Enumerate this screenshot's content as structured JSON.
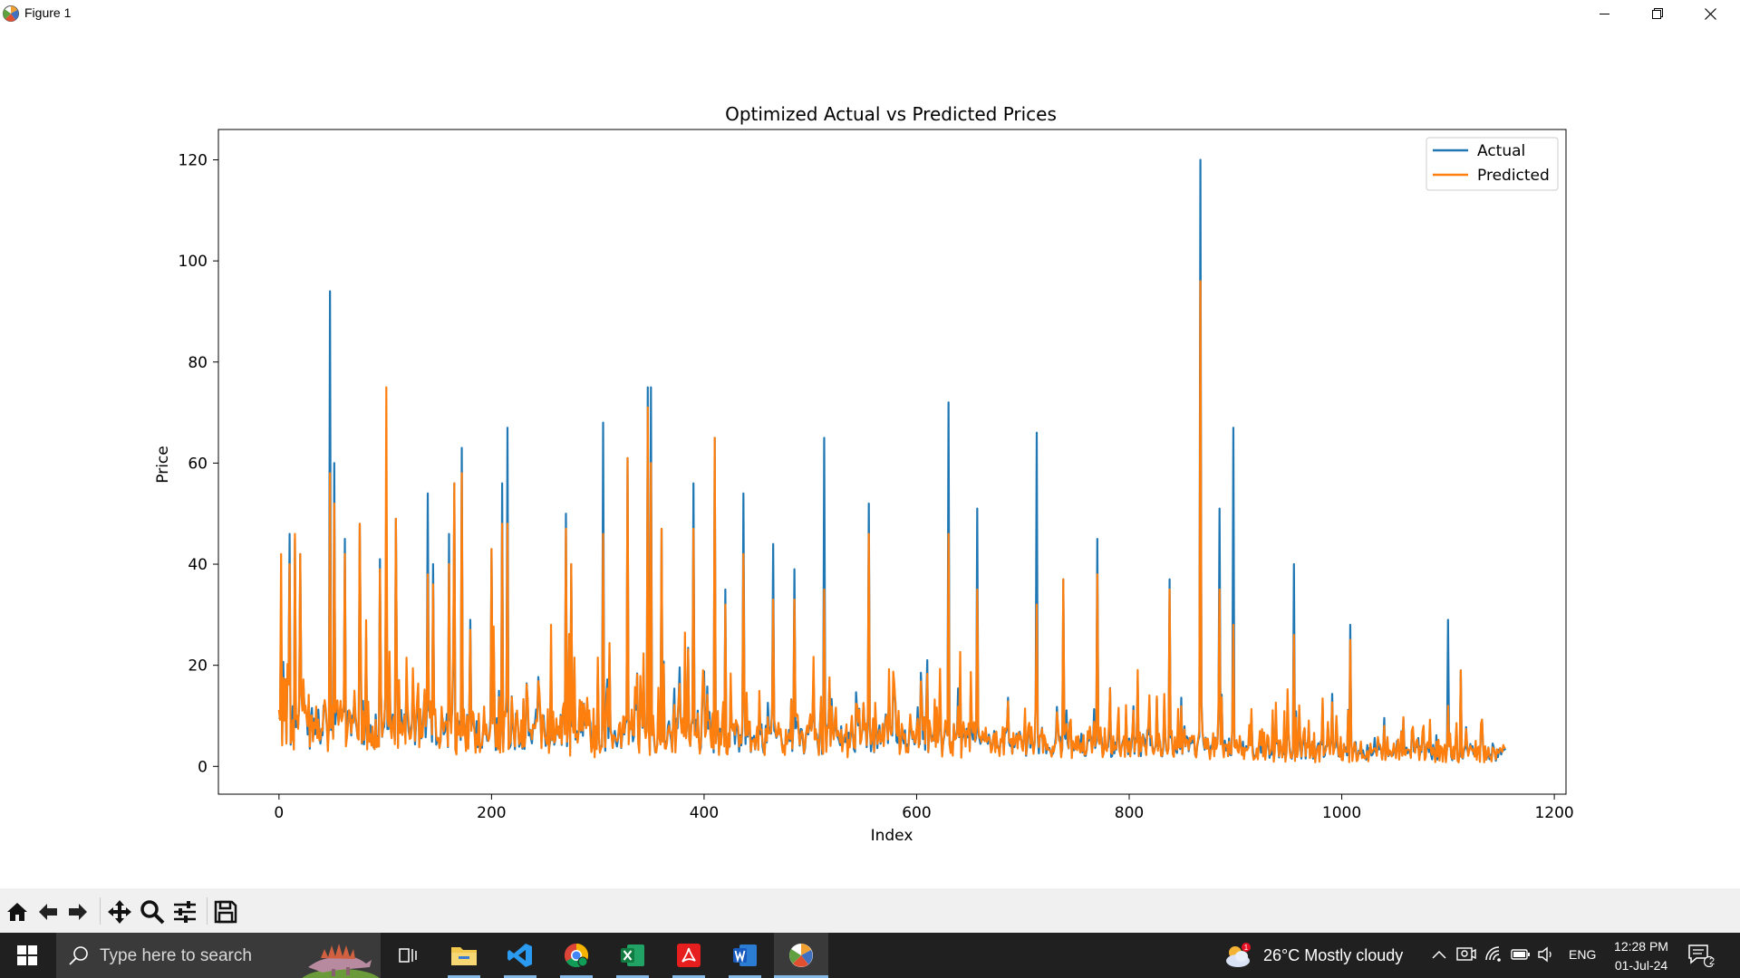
{
  "window": {
    "title": "Figure 1"
  },
  "chart_data": {
    "type": "line",
    "title": "Optimized Actual vs Predicted Prices",
    "xlabel": "Index",
    "ylabel": "Price",
    "xlim": [
      -57,
      1211
    ],
    "ylim": [
      -5.5,
      126
    ],
    "xticks": [
      0,
      200,
      400,
      600,
      800,
      1000,
      1200
    ],
    "yticks": [
      0,
      20,
      40,
      60,
      80,
      100,
      120
    ],
    "n_points": 1155,
    "legend": {
      "placement": "top-right"
    },
    "series": [
      {
        "name": "Actual",
        "color": "#1f77b4"
      },
      {
        "name": "Predicted",
        "color": "#ff7f0e"
      }
    ],
    "peaks": [
      {
        "x": 2,
        "actual": 32,
        "predicted": 42
      },
      {
        "x": 10,
        "actual": 46,
        "predicted": 40
      },
      {
        "x": 15,
        "actual": 45,
        "predicted": 46
      },
      {
        "x": 20,
        "actual": 42,
        "predicted": 42
      },
      {
        "x": 48,
        "actual": 94,
        "predicted": 58
      },
      {
        "x": 52,
        "actual": 60,
        "predicted": 52
      },
      {
        "x": 62,
        "actual": 45,
        "predicted": 42
      },
      {
        "x": 76,
        "actual": 48,
        "predicted": 48
      },
      {
        "x": 95,
        "actual": 41,
        "predicted": 39
      },
      {
        "x": 101,
        "actual": 55,
        "predicted": 75
      },
      {
        "x": 110,
        "actual": 49,
        "predicted": 49
      },
      {
        "x": 140,
        "actual": 54,
        "predicted": 38
      },
      {
        "x": 145,
        "actual": 40,
        "predicted": 36
      },
      {
        "x": 160,
        "actual": 46,
        "predicted": 40
      },
      {
        "x": 165,
        "actual": 56,
        "predicted": 56
      },
      {
        "x": 172,
        "actual": 63,
        "predicted": 58
      },
      {
        "x": 180,
        "actual": 29,
        "predicted": 27
      },
      {
        "x": 200,
        "actual": 43,
        "predicted": 43
      },
      {
        "x": 210,
        "actual": 56,
        "predicted": 48
      },
      {
        "x": 215,
        "actual": 67,
        "predicted": 48
      },
      {
        "x": 270,
        "actual": 50,
        "predicted": 47
      },
      {
        "x": 275,
        "actual": 40,
        "predicted": 40
      },
      {
        "x": 305,
        "actual": 68,
        "predicted": 46
      },
      {
        "x": 328,
        "actual": 61,
        "predicted": 61
      },
      {
        "x": 347,
        "actual": 75,
        "predicted": 71
      },
      {
        "x": 350,
        "actual": 75,
        "predicted": 60
      },
      {
        "x": 360,
        "actual": 47,
        "predicted": 47
      },
      {
        "x": 390,
        "actual": 56,
        "predicted": 47
      },
      {
        "x": 410,
        "actual": 65,
        "predicted": 65
      },
      {
        "x": 420,
        "actual": 35,
        "predicted": 32
      },
      {
        "x": 437,
        "actual": 54,
        "predicted": 42
      },
      {
        "x": 465,
        "actual": 44,
        "predicted": 33
      },
      {
        "x": 485,
        "actual": 39,
        "predicted": 33
      },
      {
        "x": 513,
        "actual": 65,
        "predicted": 35
      },
      {
        "x": 555,
        "actual": 52,
        "predicted": 46
      },
      {
        "x": 630,
        "actual": 72,
        "predicted": 46
      },
      {
        "x": 657,
        "actual": 51,
        "predicted": 35
      },
      {
        "x": 713,
        "actual": 66,
        "predicted": 32
      },
      {
        "x": 738,
        "actual": 37,
        "predicted": 37
      },
      {
        "x": 770,
        "actual": 45,
        "predicted": 38
      },
      {
        "x": 838,
        "actual": 37,
        "predicted": 35
      },
      {
        "x": 867,
        "actual": 120,
        "predicted": 96
      },
      {
        "x": 885,
        "actual": 51,
        "predicted": 35
      },
      {
        "x": 898,
        "actual": 67,
        "predicted": 28
      },
      {
        "x": 955,
        "actual": 40,
        "predicted": 26
      },
      {
        "x": 1008,
        "actual": 28,
        "predicted": 25
      },
      {
        "x": 1100,
        "actual": 29,
        "predicted": 12
      },
      {
        "x": 1112,
        "actual": 19,
        "predicted": 19
      }
    ]
  },
  "toolbar": {
    "items": [
      {
        "name": "home-icon"
      },
      {
        "name": "back-arrow-icon"
      },
      {
        "name": "forward-arrow-icon"
      },
      {
        "name": "pan-icon"
      },
      {
        "name": "zoom-icon"
      },
      {
        "name": "configure-subplots-icon"
      },
      {
        "name": "save-icon"
      }
    ]
  },
  "taskbar": {
    "search_placeholder": "Type here to search",
    "apps": [
      {
        "name": "task-view-icon"
      },
      {
        "name": "file-explorer-icon"
      },
      {
        "name": "vscode-icon"
      },
      {
        "name": "chrome-icon"
      },
      {
        "name": "excel-icon"
      },
      {
        "name": "acrobat-icon"
      },
      {
        "name": "word-icon"
      },
      {
        "name": "matplotlib-icon"
      }
    ],
    "weather": {
      "text": "26°C  Mostly cloudy",
      "badge": "1"
    },
    "language": "ENG",
    "time": "12:28 PM",
    "date": "01-Jul-24",
    "notification_count": "2"
  }
}
